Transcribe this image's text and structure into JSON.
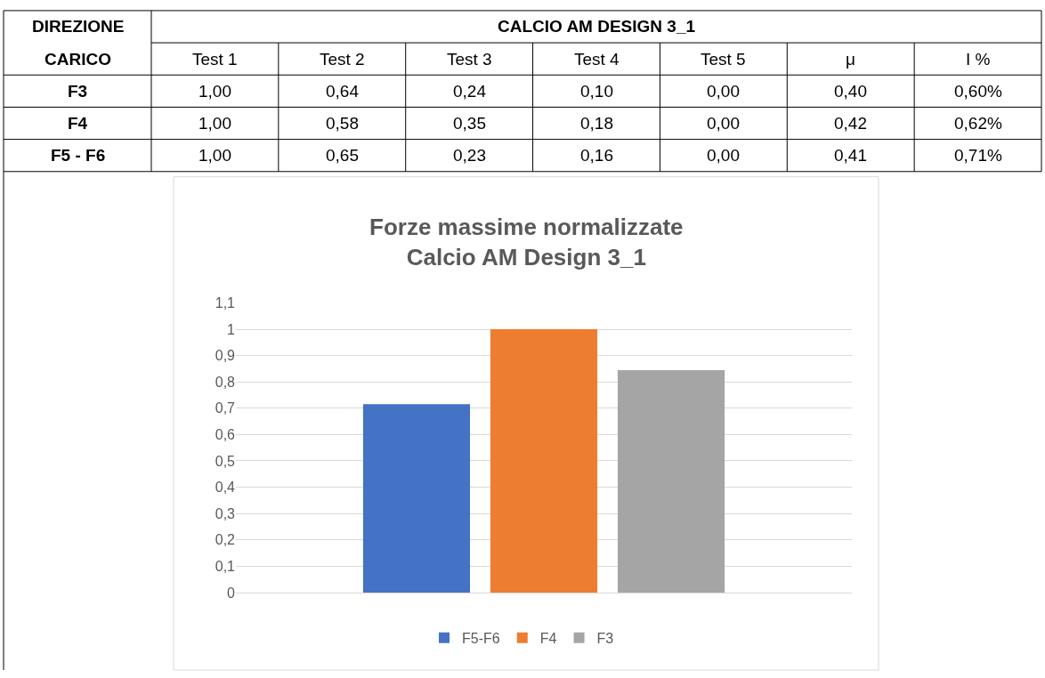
{
  "chart_data": [
    {
      "type": "other",
      "title": "CALCIO AM DESIGN 3_1",
      "annotations": [
        "DIREZIONE\nCARICO"
      ],
      "categories": [
        "Test 1",
        "Test 2",
        "Test 3",
        "Test 4",
        "Test 5",
        "μ",
        "I %"
      ],
      "y_categories": [
        "F3",
        "F4",
        "F5 - F6"
      ],
      "cell_labels": [
        [
          "1,00",
          "0,64",
          "0,24",
          "0,10",
          "0,00",
          "0,40",
          "0,60%"
        ],
        [
          "1,00",
          "0,58",
          "0,35",
          "0,18",
          "0,00",
          "0,42",
          "0,62%"
        ],
        [
          "1,00",
          "0,65",
          "0,23",
          "0,16",
          "0,00",
          "0,41",
          "0,71%"
        ]
      ]
    },
    {
      "type": "bar",
      "title": "Forze massime normalizzate\nCalcio AM Design 3_1",
      "categories": [
        null
      ],
      "series": [
        {
          "name": "F5-F6",
          "color": "#4472c4",
          "values": [
            0.715
          ]
        },
        {
          "name": "F4",
          "color": "#ed7d31",
          "values": [
            1.0
          ]
        },
        {
          "name": "F3",
          "color": "#a5a5a5",
          "values": [
            0.845
          ]
        }
      ],
      "ylim": [
        0,
        1.1
      ],
      "yticks": [
        0,
        {
          "value": 0.1,
          "label": "0,1"
        },
        {
          "value": 0.2,
          "label": "0,2"
        },
        {
          "value": 0.3,
          "label": "0,3"
        },
        {
          "value": 0.4,
          "label": "0,4"
        },
        {
          "value": 0.5,
          "label": "0,5"
        },
        {
          "value": 0.6,
          "label": "0,6"
        },
        {
          "value": 0.7,
          "label": "0,7"
        },
        {
          "value": 0.8,
          "label": "0,8"
        },
        {
          "value": 0.9,
          "label": "0,9"
        },
        1,
        {
          "value": 1.1,
          "label": "1,1"
        }
      ],
      "grid": "y",
      "legend": "bottom"
    }
  ]
}
